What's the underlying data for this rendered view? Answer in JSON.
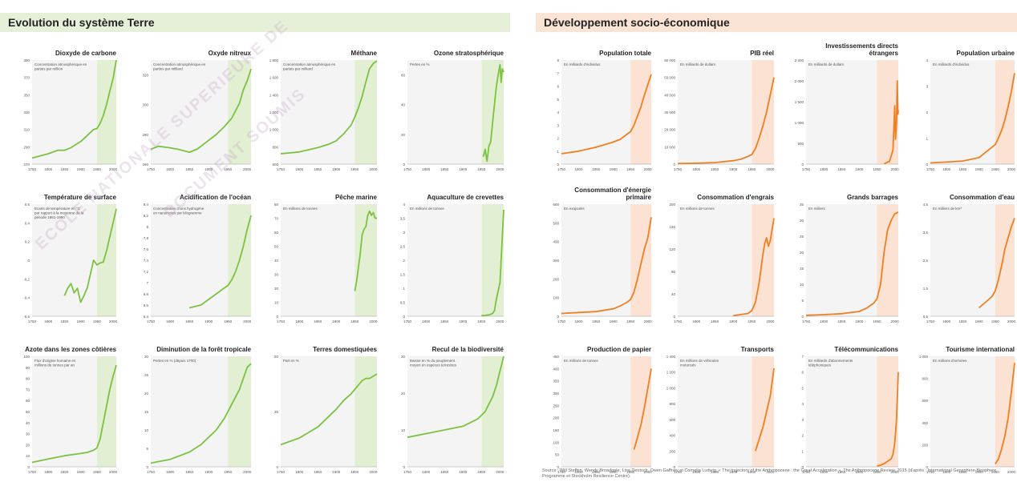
{
  "sections": {
    "left_title": "Evolution du système Terre",
    "right_title": "Développement socio-économique"
  },
  "watermarks": [
    "ECOLE NATIONALE SUPERIEURE DE",
    "DOCUMENT SOUMIS"
  ],
  "source_text": "Source : Will Steffen, Wendy Broadgate, Lisa Deutsch, Owen Gaffney et Cornelia Ludwig, « The trajectory of the Anthropocene : the Great Acceleration », The Anthropocene Review, 2015 (d'après : International Geosphere-Biosphere Programme et Stockholm Resilience Centre).",
  "colors": {
    "earth": "#7cc242",
    "earth_band": "#e3efd3",
    "socio": "#f07f22",
    "socio_band": "#fbe2d2"
  },
  "x_ticks": [
    1750,
    1800,
    1850,
    1900,
    1950,
    2000
  ],
  "chart_data": [
    {
      "type": "line",
      "title": "Dioxyde de carbone",
      "note": "Concentration atmosphérique en parties par million",
      "xlim": [
        1750,
        2010
      ],
      "ylim": [
        270,
        390
      ],
      "yticks": [
        270,
        290,
        310,
        330,
        350,
        370,
        390
      ],
      "x": [
        1750,
        1800,
        1830,
        1850,
        1870,
        1900,
        1920,
        1940,
        1950,
        1960,
        1970,
        1980,
        1990,
        2000,
        2010
      ],
      "y": [
        277,
        282,
        286,
        286,
        289,
        296,
        303,
        310,
        311,
        317,
        326,
        339,
        354,
        369,
        390
      ]
    },
    {
      "type": "line",
      "title": "Oxyde nitreux",
      "note": "Concentration atmosphérique en parties par milliard",
      "xlim": [
        1750,
        2010
      ],
      "ylim": [
        260,
        330
      ],
      "yticks": [
        260,
        280,
        300,
        320
      ],
      "x": [
        1750,
        1770,
        1800,
        1820,
        1850,
        1870,
        1900,
        1920,
        1940,
        1950,
        1960,
        1980,
        1990,
        2000,
        2010
      ],
      "y": [
        270,
        272,
        271,
        270,
        268,
        270,
        276,
        280,
        285,
        288,
        291,
        301,
        310,
        316,
        324
      ]
    },
    {
      "type": "line",
      "title": "Méthane",
      "note": "Concentration atmosphérique en parties par milliard",
      "xlim": [
        1750,
        2010
      ],
      "ylim": [
        600,
        1800
      ],
      "yticks": [
        600,
        800,
        1000,
        1200,
        1400,
        1600,
        1800
      ],
      "x": [
        1750,
        1800,
        1850,
        1880,
        1900,
        1920,
        1940,
        1950,
        1960,
        1970,
        1980,
        1990,
        2000,
        2010
      ],
      "y": [
        720,
        740,
        790,
        830,
        870,
        950,
        1050,
        1140,
        1250,
        1380,
        1550,
        1700,
        1760,
        1790
      ]
    },
    {
      "type": "line",
      "title": "Ozone stratosphérique",
      "note": "Pertes en %",
      "xlim": [
        1750,
        2010
      ],
      "ylim": [
        0,
        70
      ],
      "yticks": [
        0,
        20,
        40,
        60
      ],
      "x": [
        1955,
        1960,
        1965,
        1970,
        1975,
        1980,
        1985,
        1990,
        1995,
        2000,
        2003,
        2006,
        2010
      ],
      "y": [
        5,
        10,
        2,
        12,
        15,
        28,
        40,
        52,
        60,
        67,
        55,
        64,
        62
      ]
    },
    {
      "type": "line",
      "title": "Température de surface",
      "note": "Ecarts de température en °C par rapport à la moyenne de la période 1961-1990",
      "xlim": [
        1750,
        2010
      ],
      "ylim": [
        -0.6,
        0.6
      ],
      "yticks": [
        -0.6,
        -0.4,
        -0.2,
        0,
        0.2,
        0.4,
        0.6
      ],
      "x": [
        1850,
        1860,
        1870,
        1880,
        1890,
        1900,
        1910,
        1920,
        1930,
        1940,
        1950,
        1960,
        1970,
        1980,
        1990,
        2000,
        2010
      ],
      "y": [
        -0.38,
        -0.3,
        -0.25,
        -0.35,
        -0.3,
        -0.45,
        -0.38,
        -0.3,
        -0.15,
        0.0,
        -0.05,
        -0.03,
        -0.02,
        0.1,
        0.25,
        0.4,
        0.55
      ]
    },
    {
      "type": "line",
      "title": "Acidification de l'océan",
      "note": "Concentration d'ions hydrogène en nanomoles par kilogramme",
      "xlim": [
        1750,
        2010
      ],
      "ylim": [
        6.4,
        8.4
      ],
      "yticks": [
        6.4,
        6.6,
        6.8,
        7,
        7.2,
        7.4,
        7.6,
        7.8,
        8,
        8.2,
        8.4
      ],
      "x": [
        1850,
        1880,
        1900,
        1920,
        1940,
        1950,
        1960,
        1970,
        1980,
        1990,
        2000,
        2010
      ],
      "y": [
        6.55,
        6.6,
        6.7,
        6.8,
        6.9,
        6.95,
        7.05,
        7.2,
        7.4,
        7.65,
        7.95,
        8.2
      ]
    },
    {
      "type": "line",
      "title": "Pêche marine",
      "note": "En millions de tonnes",
      "xlim": [
        1750,
        2010
      ],
      "ylim": [
        0,
        80
      ],
      "yticks": [
        0,
        10,
        20,
        30,
        40,
        50,
        60,
        70,
        80
      ],
      "x": [
        1950,
        1955,
        1960,
        1965,
        1970,
        1975,
        1980,
        1985,
        1990,
        1995,
        2000,
        2005,
        2010
      ],
      "y": [
        18,
        25,
        35,
        45,
        58,
        62,
        64,
        72,
        75,
        72,
        74,
        70,
        70
      ]
    },
    {
      "type": "line",
      "title": "Aquaculture de crevettes",
      "note": "En millions de tonnes",
      "xlim": [
        1750,
        2010
      ],
      "ylim": [
        0,
        4
      ],
      "yticks": [
        0,
        0.5,
        1,
        1.5,
        2,
        2.5,
        3,
        3.5,
        4
      ],
      "x": [
        1950,
        1960,
        1970,
        1980,
        1985,
        1990,
        1995,
        2000,
        2005,
        2010
      ],
      "y": [
        0.02,
        0.03,
        0.05,
        0.1,
        0.2,
        0.6,
        0.9,
        1.2,
        2.5,
        3.8
      ]
    },
    {
      "type": "line",
      "title": "Azote dans les zones côtières",
      "note": "Flux d'origine humaine en millions de tonnes par an",
      "xlim": [
        1750,
        2010
      ],
      "ylim": [
        0,
        100
      ],
      "yticks": [
        0,
        10,
        20,
        30,
        40,
        50,
        60,
        70,
        80,
        90,
        100
      ],
      "x": [
        1750,
        1800,
        1850,
        1900,
        1920,
        1940,
        1950,
        1960,
        1970,
        1980,
        1990,
        2000,
        2010
      ],
      "y": [
        4,
        7,
        10,
        12,
        13,
        15,
        17,
        25,
        40,
        55,
        70,
        82,
        92
      ]
    },
    {
      "type": "line",
      "title": "Diminution de la forêt tropicale",
      "note": "Pertes en % (depuis 1700)",
      "xlim": [
        1750,
        2010
      ],
      "ylim": [
        0,
        30
      ],
      "yticks": [
        0,
        5,
        10,
        15,
        20,
        25,
        30
      ],
      "x": [
        1750,
        1800,
        1850,
        1880,
        1900,
        1920,
        1940,
        1950,
        1960,
        1970,
        1980,
        1990,
        2000,
        2010
      ],
      "y": [
        1,
        2,
        4,
        6,
        8,
        10,
        13,
        15,
        17,
        19,
        21,
        24,
        27,
        28
      ]
    },
    {
      "type": "line",
      "title": "Terres domestiquées",
      "note": "Part en %",
      "xlim": [
        1750,
        2010
      ],
      "ylim": [
        0,
        50
      ],
      "yticks": [
        0,
        25,
        50
      ],
      "x": [
        1750,
        1800,
        1850,
        1900,
        1920,
        1940,
        1950,
        1960,
        1970,
        1980,
        1990,
        2000,
        2010
      ],
      "y": [
        10,
        13,
        18,
        26,
        30,
        33,
        35,
        37,
        39,
        40,
        40,
        41,
        42
      ]
    },
    {
      "type": "line",
      "title": "Recul de la biodiversité",
      "note": "Baisse en % du peuplement moyen en espèces terrestres",
      "xlim": [
        1750,
        2010
      ],
      "ylim": [
        0,
        30
      ],
      "yticks": [
        0,
        10,
        20,
        30
      ],
      "x": [
        1750,
        1800,
        1850,
        1900,
        1920,
        1940,
        1950,
        1960,
        1970,
        1980,
        1990,
        2000,
        2010
      ],
      "y": [
        8,
        9,
        10,
        11,
        12,
        13,
        14,
        15,
        17,
        19,
        22,
        26,
        30
      ]
    },
    {
      "type": "line",
      "title": "Population totale",
      "note": "En milliards d'individus",
      "xlim": [
        1750,
        2010
      ],
      "ylim": [
        0,
        8
      ],
      "yticks": [
        0,
        1,
        2,
        3,
        4,
        5,
        6,
        7,
        8
      ],
      "x": [
        1750,
        1800,
        1850,
        1900,
        1920,
        1940,
        1950,
        1960,
        1970,
        1980,
        1990,
        2000,
        2010
      ],
      "y": [
        0.8,
        1.0,
        1.3,
        1.7,
        1.9,
        2.3,
        2.5,
        3.0,
        3.7,
        4.4,
        5.3,
        6.1,
        6.9
      ]
    },
    {
      "type": "line",
      "title": "PIB réel",
      "note": "En milliards de dollars",
      "xlim": [
        1750,
        2010
      ],
      "ylim": [
        0,
        60000
      ],
      "yticks": [
        0,
        10000,
        20000,
        30000,
        40000,
        50000,
        60000
      ],
      "x": [
        1750,
        1800,
        1850,
        1900,
        1920,
        1940,
        1950,
        1960,
        1970,
        1980,
        1990,
        2000,
        2010
      ],
      "y": [
        300,
        500,
        900,
        2000,
        2800,
        4500,
        5500,
        9000,
        15000,
        22000,
        30000,
        40000,
        50000
      ]
    },
    {
      "type": "line",
      "title": "Investissements directs étrangers",
      "note": "En milliards de dollars",
      "xlim": [
        1750,
        2010
      ],
      "ylim": [
        0,
        2500
      ],
      "yticks": [
        0,
        500,
        1000,
        1500,
        2000,
        2500
      ],
      "x": [
        1970,
        1980,
        1985,
        1990,
        1995,
        2000,
        2002,
        2005,
        2007,
        2009,
        2010
      ],
      "y": [
        10,
        50,
        60,
        200,
        350,
        1400,
        600,
        1000,
        2000,
        1200,
        1300
      ]
    },
    {
      "type": "line",
      "title": "Population urbaine",
      "note": "En milliards d'individus",
      "xlim": [
        1750,
        2010
      ],
      "ylim": [
        0,
        4
      ],
      "yticks": [
        0,
        1,
        2,
        3,
        4
      ],
      "x": [
        1750,
        1800,
        1850,
        1900,
        1950,
        1960,
        1970,
        1980,
        1990,
        2000,
        2010
      ],
      "y": [
        0.05,
        0.08,
        0.12,
        0.25,
        0.75,
        1.0,
        1.3,
        1.7,
        2.2,
        2.8,
        3.5
      ]
    },
    {
      "type": "line",
      "title": "Consommation d'énergie primaire",
      "note": "En exajoules",
      "xlim": [
        1750,
        2010
      ],
      "ylim": [
        0,
        600
      ],
      "yticks": [
        0,
        100,
        200,
        300,
        400,
        500,
        600
      ],
      "x": [
        1750,
        1800,
        1850,
        1900,
        1920,
        1940,
        1950,
        1960,
        1970,
        1980,
        1990,
        2000,
        2010
      ],
      "y": [
        15,
        20,
        25,
        40,
        55,
        75,
        90,
        130,
        200,
        280,
        360,
        420,
        530
      ]
    },
    {
      "type": "line",
      "title": "Consommation d'engrais",
      "note": "En millions de tonnes",
      "xlim": [
        1750,
        2010
      ],
      "ylim": [
        0,
        200
      ],
      "yticks": [
        0,
        40,
        80,
        120,
        160,
        200
      ],
      "x": [
        1900,
        1920,
        1940,
        1950,
        1960,
        1970,
        1980,
        1985,
        1990,
        1995,
        2000,
        2005,
        2010
      ],
      "y": [
        1,
        3,
        5,
        10,
        25,
        60,
        110,
        130,
        140,
        125,
        135,
        155,
        175
      ]
    },
    {
      "type": "line",
      "title": "Grands barrages",
      "note": "En milliers",
      "xlim": [
        1750,
        2010
      ],
      "ylim": [
        0,
        35
      ],
      "yticks": [
        0,
        5,
        10,
        15,
        20,
        25,
        30,
        35
      ],
      "x": [
        1750,
        1800,
        1850,
        1900,
        1920,
        1940,
        1950,
        1960,
        1970,
        1980,
        1990,
        2000,
        2010
      ],
      "y": [
        0.3,
        0.5,
        0.8,
        1.5,
        2.5,
        4,
        5.5,
        10,
        20,
        27,
        30,
        32,
        32.5
      ]
    },
    {
      "type": "line",
      "title": "Consommation d'eau",
      "note": "En milliers de km³",
      "xlim": [
        1750,
        2010
      ],
      "ylim": [
        0.5,
        4.5
      ],
      "yticks": [
        0.5,
        1.5,
        2.5,
        3.5,
        4.5
      ],
      "x": [
        1900,
        1920,
        1940,
        1950,
        1960,
        1970,
        1980,
        1990,
        2000,
        2010
      ],
      "y": [
        0.8,
        1.0,
        1.2,
        1.4,
        1.8,
        2.3,
        2.9,
        3.3,
        3.7,
        4.0
      ]
    },
    {
      "type": "line",
      "title": "Production de papier",
      "note": "En millions de tonnes",
      "xlim": [
        1750,
        2010
      ],
      "ylim": [
        0,
        450
      ],
      "yticks": [
        0,
        50,
        100,
        150,
        200,
        250,
        300,
        350,
        400,
        450
      ],
      "x": [
        1960,
        1970,
        1980,
        1990,
        2000,
        2010
      ],
      "y": [
        70,
        120,
        170,
        240,
        320,
        400
      ]
    },
    {
      "type": "line",
      "title": "Transports",
      "note": "En millions de véhicules motorisés",
      "xlim": [
        1750,
        2010
      ],
      "ylim": [
        0,
        1400
      ],
      "yticks": [
        0,
        200,
        400,
        600,
        800,
        1000,
        1200,
        1400
      ],
      "x": [
        1960,
        1970,
        1980,
        1990,
        2000,
        2010
      ],
      "y": [
        200,
        350,
        500,
        700,
        900,
        1250
      ]
    },
    {
      "type": "line",
      "title": "Télécommunications",
      "note": "En milliards d'abonnements téléphoniques",
      "xlim": [
        1750,
        2010
      ],
      "ylim": [
        0,
        7
      ],
      "yticks": [
        0,
        1,
        2,
        3,
        4,
        5,
        6,
        7
      ],
      "x": [
        1950,
        1960,
        1970,
        1980,
        1990,
        1995,
        2000,
        2005,
        2010
      ],
      "y": [
        0.05,
        0.1,
        0.2,
        0.35,
        0.5,
        0.8,
        1.5,
        3,
        6
      ]
    },
    {
      "type": "line",
      "title": "Tourisme international",
      "note": "En millions d'arrivées",
      "xlim": [
        1750,
        2010
      ],
      "ylim": [
        0,
        1000
      ],
      "yticks": [
        0,
        200,
        400,
        600,
        800,
        1000
      ],
      "x": [
        1950,
        1960,
        1970,
        1980,
        1990,
        2000,
        2010
      ],
      "y": [
        25,
        70,
        160,
        280,
        440,
        680,
        940
      ]
    }
  ]
}
